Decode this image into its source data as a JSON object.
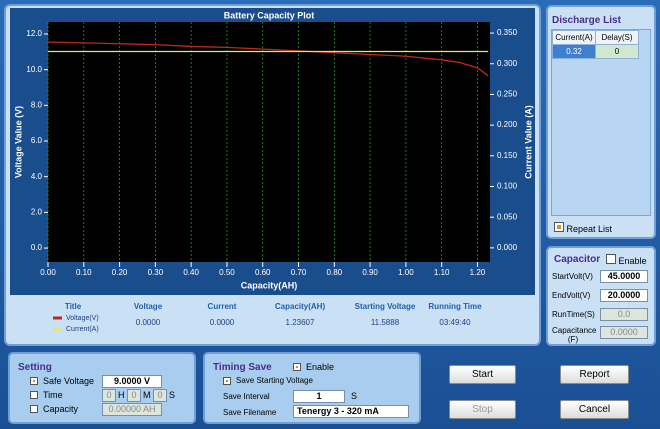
{
  "chart_data": {
    "type": "line",
    "title": "Battery Capacity Plot",
    "x_label": "Capacity(AH)",
    "y_label": "Voltage Value (V)",
    "y2_label": "Current Value (A)",
    "x": [
      0,
      0.1,
      0.2,
      0.3,
      0.4,
      0.5,
      0.6,
      0.7,
      0.8,
      0.9,
      1.0,
      1.1,
      1.15,
      1.2,
      1.23
    ],
    "series": [
      {
        "name": "Voltage(V)",
        "color": "#c0281c",
        "values": [
          11.55,
          11.5,
          11.45,
          11.4,
          11.3,
          11.25,
          11.15,
          11.05,
          10.95,
          10.85,
          10.75,
          10.55,
          10.4,
          10.1,
          9.65
        ]
      },
      {
        "name": "Current(A)",
        "color": "#e8e85a",
        "axis": "y2",
        "values": [
          0.32,
          0.32,
          0.32,
          0.32,
          0.32,
          0.32,
          0.32,
          0.32,
          0.32,
          0.32,
          0.32,
          0.32,
          0.32,
          0.32,
          0.32
        ]
      }
    ],
    "xlim": [
      0,
      1.235
    ],
    "ylim": [
      -0.78,
      12.67
    ],
    "y2lim": [
      -0.023,
      0.368
    ],
    "xticks": [
      {
        "value": 0,
        "label": "0.00"
      },
      {
        "value": 0.1,
        "label": "0.10"
      },
      {
        "value": 0.2,
        "label": "0.20"
      },
      {
        "value": 0.3,
        "label": "0.30"
      },
      {
        "value": 0.4,
        "label": "0.40"
      },
      {
        "value": 0.5,
        "label": "0.50"
      },
      {
        "value": 0.6,
        "label": "0.60"
      },
      {
        "value": 0.7,
        "label": "0.70"
      },
      {
        "value": 0.8,
        "label": "0.80"
      },
      {
        "value": 0.9,
        "label": "0.90"
      },
      {
        "value": 1.0,
        "label": "1.00"
      },
      {
        "value": 1.1,
        "label": "1.10"
      },
      {
        "value": 1.2,
        "label": "1.20"
      }
    ],
    "yticks": [
      {
        "value": 0,
        "label": "0.0"
      },
      {
        "value": 2,
        "label": "2.0"
      },
      {
        "value": 4,
        "label": "4.0"
      },
      {
        "value": 6,
        "label": "6.0"
      },
      {
        "value": 8,
        "label": "8.0"
      },
      {
        "value": 10,
        "label": "10.0"
      },
      {
        "value": 12,
        "label": "12.0"
      }
    ],
    "y2ticks": [
      {
        "value": 0,
        "label": "0.000"
      },
      {
        "value": 0.05,
        "label": "0.050"
      },
      {
        "value": 0.1,
        "label": "0.100"
      },
      {
        "value": 0.15,
        "label": "0.150"
      },
      {
        "value": 0.2,
        "label": "0.200"
      },
      {
        "value": 0.25,
        "label": "0.250"
      },
      {
        "value": 0.3,
        "label": "0.300"
      },
      {
        "value": 0.35,
        "label": "0.350"
      }
    ],
    "grid": true,
    "grid_color": "#2e9a2e",
    "background": "#000000"
  },
  "status_table": {
    "headers": [
      "Title",
      "Voltage",
      "Current",
      "Capacity(AH)",
      "Starting Voltage",
      "Running Time"
    ],
    "values": [
      "0.0000",
      "0.0000",
      "1.23607",
      "11.5888",
      "03:49:40"
    ]
  },
  "discharge_list": {
    "title": "Discharge List",
    "headers": [
      "Current(A)",
      "Delay(S)"
    ],
    "rows": [
      [
        "0.32",
        "0"
      ]
    ],
    "repeat": {
      "label": "Repeat List",
      "checked": true
    }
  },
  "capacitor": {
    "title": "Capacitor",
    "enable": {
      "label": "Enable",
      "checked": false
    },
    "fields": [
      {
        "label": "StartVolt(V)",
        "value": "45.0000"
      },
      {
        "label": "EndVolt(V)",
        "value": "20.0000"
      },
      {
        "label": "RunTime(S)",
        "value": "0.0"
      },
      {
        "label": "Capacitance (F)",
        "value": "0.0000"
      }
    ]
  },
  "setting": {
    "title": "Setting",
    "safe_voltage": {
      "label": "Safe Voltage",
      "checked": true,
      "value": "9.0000 V"
    },
    "time": {
      "label": "Time",
      "checked": false,
      "h": "0",
      "h_unit": "H",
      "m": "0",
      "m_unit": "M",
      "s": "0",
      "s_unit": "S"
    },
    "capacity": {
      "label": "Capacity",
      "checked": false,
      "value": "0.00000 AH"
    }
  },
  "timing_save": {
    "title": "Timing Save",
    "enable": {
      "label": "Enable",
      "checked": true
    },
    "save_start": {
      "label": "Save Starting Voltage",
      "checked": true
    },
    "interval_label": "Save Interval",
    "interval": "1",
    "interval_unit": "S",
    "filename_label": "Save Filename",
    "filename": "Tenergy 3 - 320 mA"
  },
  "buttons": [
    "Start",
    "Report",
    "Stop",
    "Cancel"
  ]
}
